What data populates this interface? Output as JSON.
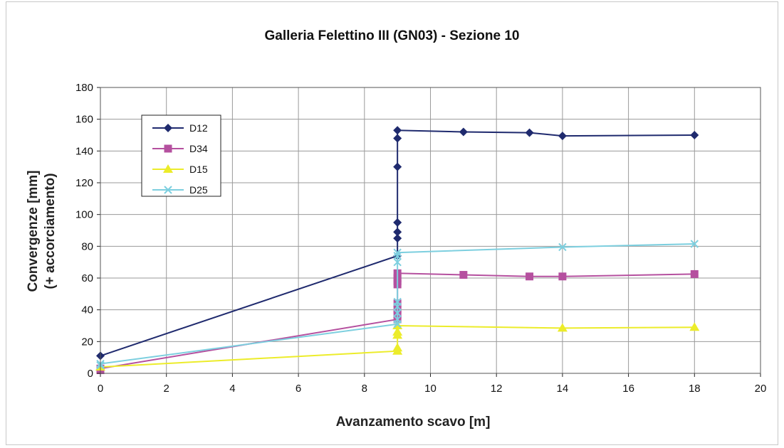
{
  "chart_data": {
    "type": "line",
    "title": "Galleria Felettino III (GN03) - Sezione 10",
    "xlabel": "Avanzamento scavo [m]",
    "ylabel_line1": "Convergenze [mm]",
    "ylabel_line2": "(+ accorciamento)",
    "xlim": [
      0,
      20
    ],
    "ylim": [
      0,
      180
    ],
    "xticks": [
      "0",
      "2",
      "4",
      "6",
      "8",
      "10",
      "12",
      "14",
      "16",
      "18",
      "20"
    ],
    "yticks": [
      "0",
      "20",
      "40",
      "60",
      "80",
      "100",
      "120",
      "140",
      "160",
      "180"
    ],
    "grid": true,
    "legend_position": "top-left",
    "series": [
      {
        "name": "D12",
        "color": "#1f2a6e",
        "marker": "diamond",
        "points": [
          [
            0,
            11
          ],
          [
            9,
            74
          ],
          [
            9,
            85
          ],
          [
            9,
            89
          ],
          [
            9,
            95
          ],
          [
            9,
            130
          ],
          [
            9,
            148
          ],
          [
            9,
            153
          ],
          [
            11,
            152
          ],
          [
            13,
            151.5
          ],
          [
            14,
            149.5
          ],
          [
            18,
            150
          ]
        ]
      },
      {
        "name": "D34",
        "color": "#b5509f",
        "marker": "square",
        "points": [
          [
            0,
            2
          ],
          [
            0,
            3
          ],
          [
            9,
            34
          ],
          [
            9,
            37
          ],
          [
            9,
            40
          ],
          [
            9,
            44
          ],
          [
            9,
            56
          ],
          [
            9,
            58
          ],
          [
            9,
            60
          ],
          [
            9,
            63
          ],
          [
            11,
            62
          ],
          [
            13,
            61
          ],
          [
            14,
            61
          ],
          [
            18,
            62.5
          ]
        ]
      },
      {
        "name": "D15",
        "color": "#ecec2a",
        "marker": "triangle",
        "points": [
          [
            0,
            4
          ],
          [
            9,
            14
          ],
          [
            9,
            16
          ],
          [
            9,
            24
          ],
          [
            9,
            26
          ],
          [
            9,
            30
          ],
          [
            14,
            28.5
          ],
          [
            18,
            29
          ]
        ]
      },
      {
        "name": "D25",
        "color": "#7dcfdf",
        "marker": "x",
        "points": [
          [
            0,
            5
          ],
          [
            0,
            6
          ],
          [
            9,
            31
          ],
          [
            9,
            34
          ],
          [
            9,
            38
          ],
          [
            9,
            42
          ],
          [
            9,
            45
          ],
          [
            9,
            70
          ],
          [
            9,
            74
          ],
          [
            9,
            76
          ],
          [
            14,
            79.5
          ],
          [
            18,
            81.5
          ]
        ]
      }
    ]
  }
}
